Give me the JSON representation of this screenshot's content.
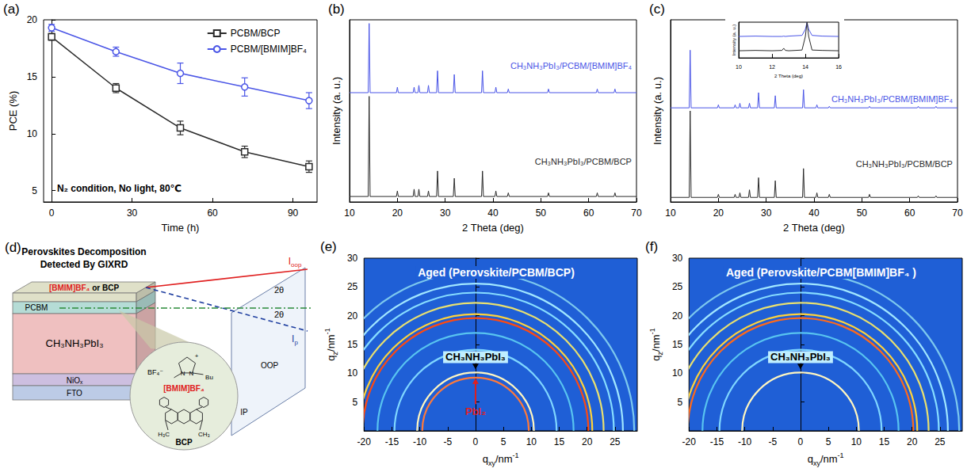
{
  "chart_data": [
    {
      "panel_label": "(a)",
      "type": "line",
      "xlabel": "Time (h)",
      "ylabel": "PCE (%)",
      "x": [
        0,
        24,
        48,
        72,
        96
      ],
      "xlim": [
        -3,
        99
      ],
      "xticks": [
        0,
        30,
        60,
        90
      ],
      "ylim": [
        4,
        20
      ],
      "yticks": [
        5,
        10,
        15,
        20
      ],
      "legend": "upper right",
      "annotations": [
        {
          "text": "N₂ condition, No light, 80℃",
          "x": 2,
          "y": 5.2
        }
      ],
      "series": [
        {
          "name": "PCBM/BCP",
          "color": "#2b2b2b",
          "marker": "square-open",
          "values": [
            18.5,
            14.0,
            10.5,
            8.4,
            7.1
          ],
          "errors": [
            0.3,
            0.4,
            0.6,
            0.5,
            0.5
          ]
        },
        {
          "name": "PCBM/[BMIM]BF₄",
          "color": "#4a55e6",
          "marker": "circle-open",
          "values": [
            19.3,
            17.2,
            15.3,
            14.1,
            12.9
          ],
          "errors": [
            0.3,
            0.4,
            0.9,
            0.8,
            0.7
          ]
        }
      ]
    },
    {
      "panel_label": "(b)",
      "type": "line",
      "xlabel": "2 Theta (deg)",
      "ylabel": "Intensity (a. u.)",
      "xlim": [
        10,
        70
      ],
      "xticks": [
        10,
        20,
        30,
        40,
        50,
        60,
        70
      ],
      "ylim": [
        0,
        100
      ],
      "tick_labels": "x",
      "x": [
        10,
        13.9,
        14.1,
        14.3,
        19.8,
        20.0,
        20.2,
        23.3,
        23.5,
        23.7,
        24.3,
        24.5,
        24.7,
        26.3,
        26.5,
        26.7,
        28.2,
        28.4,
        28.6,
        31.7,
        31.9,
        32.1,
        37.6,
        37.8,
        38.0,
        40.4,
        40.6,
        40.8,
        43.0,
        43.2,
        43.4,
        51.4,
        51.6,
        51.8,
        61.6,
        61.8,
        62.0,
        65.3,
        65.5,
        65.7,
        70
      ],
      "series": [
        {
          "name": "CH₃NH₃PbI₃/PCBM/[BMIM]BF₄",
          "color": "#4a55e6",
          "label_at": [
            69,
            75
          ],
          "values": [
            60,
            60,
            98,
            60,
            60,
            63,
            60,
            60,
            63,
            60,
            60,
            64,
            60,
            60,
            64,
            60,
            60,
            72,
            60,
            60,
            70,
            60,
            60,
            72,
            60,
            60,
            63,
            60,
            60,
            62,
            60,
            60,
            62,
            60,
            60,
            62,
            60,
            60,
            62,
            60,
            60
          ]
        },
        {
          "name": "CH₃NH₃PbI₃/PCBM/BCP",
          "color": "#2b2b2b",
          "label_at": [
            69,
            22
          ],
          "values": [
            3,
            3,
            58,
            3,
            3,
            6,
            3,
            3,
            7,
            3,
            3,
            7,
            3,
            3,
            6,
            3,
            3,
            17,
            3,
            3,
            13,
            3,
            3,
            17,
            3,
            3,
            6,
            3,
            3,
            5,
            3,
            3,
            5,
            3,
            3,
            5,
            3,
            3,
            5,
            3,
            3
          ]
        }
      ]
    },
    {
      "panel_label": "(c)",
      "type": "line",
      "xlabel": "2 Theta (deg)",
      "ylabel": "Intensity (a. u.)",
      "xlim": [
        10,
        70
      ],
      "xticks": [
        10,
        20,
        30,
        40,
        50,
        60,
        70
      ],
      "ylim": [
        0,
        120
      ],
      "tick_labels": "x",
      "x": [
        10,
        13.9,
        14.1,
        14.3,
        19.8,
        20.0,
        20.2,
        23.3,
        23.5,
        23.7,
        24.3,
        24.5,
        24.7,
        26.3,
        26.5,
        26.7,
        28.2,
        28.4,
        28.6,
        31.7,
        31.9,
        32.1,
        37.6,
        37.8,
        38.0,
        40.4,
        40.6,
        40.8,
        43.0,
        43.2,
        43.4,
        51.4,
        51.6,
        51.8,
        61.6,
        61.8,
        62.0,
        65.3,
        65.5,
        65.7,
        70
      ],
      "series": [
        {
          "name": "CH₃NH₃PbI₃/PCBM/[BMIM]BF₄",
          "color": "#4a55e6",
          "label_at": [
            69,
            68
          ],
          "values": [
            62,
            62,
            100,
            62,
            62,
            64,
            62,
            62,
            64,
            62,
            62,
            65,
            62,
            62,
            65,
            62,
            62,
            72,
            62,
            62,
            70,
            62,
            62,
            74,
            62,
            62,
            64,
            62,
            62,
            63,
            62,
            62,
            63,
            62,
            62,
            63,
            62,
            62,
            63,
            62,
            62
          ]
        },
        {
          "name": "CH₃NH₃PbI₃/PCBM/BCP",
          "color": "#2b2b2b",
          "label_at": [
            69,
            25
          ],
          "values": [
            3,
            3,
            60,
            3,
            3,
            5,
            3,
            3,
            5,
            3,
            3,
            6,
            3,
            3,
            8,
            3,
            3,
            16,
            3,
            3,
            14,
            3,
            3,
            22,
            3,
            3,
            6,
            3,
            3,
            5,
            3,
            3,
            5,
            3,
            3,
            4,
            3,
            3,
            4,
            3,
            3
          ]
        }
      ],
      "inset": {
        "type": "line",
        "xlabel": "2 Theta (deg)",
        "ylabel": "Intensity (a. u.)",
        "xlim": [
          10,
          16
        ],
        "xticks": [
          10,
          12,
          14,
          16
        ],
        "ylim": [
          0,
          100
        ],
        "tick_labels": "x",
        "x": [
          10,
          11,
          12,
          12.6,
          12.7,
          12.8,
          13,
          13.8,
          14.0,
          14.1,
          14.2,
          14.4,
          15,
          16
        ],
        "series": [
          {
            "color": "#4a55e6",
            "values": [
              60,
              61,
              60,
              60,
              61,
              60,
              61,
              63,
              80,
              100,
              80,
              63,
              61,
              60
            ]
          },
          {
            "color": "#2b2b2b",
            "values": [
              20,
              21,
              20,
              21,
              27,
              21,
              20,
              22,
              60,
              100,
              60,
              22,
              21,
              20
            ]
          }
        ]
      }
    },
    {
      "panel_label": "(e)",
      "type": "rings",
      "title": "Aged (Perovskite/PCBM/BCP)",
      "xlabel": {
        "base": "q",
        "sub": "xy",
        "unit": "/nm",
        "sup": "-1"
      },
      "ylabel": {
        "base": "q",
        "sub": "z",
        "unit": "/nm",
        "sup": "-1"
      },
      "xlim": [
        -20,
        29
      ],
      "xticks": [
        -20,
        -15,
        -10,
        -5,
        0,
        5,
        10,
        15,
        20,
        25
      ],
      "ylim": [
        0,
        30
      ],
      "yticks": [
        5,
        10,
        15,
        20,
        25,
        30
      ],
      "color": "#1f5fd6",
      "rings": [
        {
          "q": 9.4,
          "color": "#ff7a3a"
        },
        {
          "q": 10.3,
          "color": "#fff6c0"
        },
        {
          "q": 14.3,
          "color": "#7fd6ff"
        },
        {
          "q": 17.3,
          "color": "#58c4f0"
        },
        {
          "q": 19.9,
          "color": "#ff4a10"
        },
        {
          "q": 20.6,
          "color": "#ffd23a"
        },
        {
          "q": 22.6,
          "color": "#e8e070"
        },
        {
          "q": 24.4,
          "color": "#86dcff"
        },
        {
          "q": 26.0,
          "color": "#a0e6ff"
        },
        {
          "q": 28.0,
          "color": "#7cc8ee"
        }
      ],
      "annotations": [
        {
          "text": "CH₃NH₃PbI₃",
          "x": 0,
          "y": 12.8,
          "target": [
            0,
            10.7
          ],
          "color": "#000000"
        },
        {
          "text": "PbI₂",
          "x": 0,
          "y": 3.4,
          "target": [
            0,
            9.1
          ],
          "color": "#e02020"
        }
      ]
    },
    {
      "panel_label": "(f)",
      "type": "rings",
      "title": "Aged (Perovskite/PCBM[BMIM]BF₄ )",
      "xlabel": {
        "base": "q",
        "sub": "xy",
        "unit": "/nm",
        "sup": "-1"
      },
      "ylabel": {
        "base": "q",
        "sub": "z",
        "unit": "/nm",
        "sup": "-1"
      },
      "xlim": [
        -20,
        29
      ],
      "xticks": [
        -20,
        -15,
        -10,
        -5,
        0,
        5,
        10,
        15,
        20,
        25
      ],
      "ylim": [
        0,
        30
      ],
      "yticks": [
        5,
        10,
        15,
        20,
        25,
        30
      ],
      "color": "#1f5fd6",
      "rings": [
        {
          "q": 10.3,
          "color": "#fff6c0"
        },
        {
          "q": 14.3,
          "color": "#7fd6ff"
        },
        {
          "q": 17.3,
          "color": "#58c4f0"
        },
        {
          "q": 19.9,
          "color": "#ff6a1a"
        },
        {
          "q": 20.6,
          "color": "#ffd23a"
        },
        {
          "q": 22.6,
          "color": "#e8e070"
        },
        {
          "q": 24.4,
          "color": "#86dcff"
        },
        {
          "q": 26.0,
          "color": "#a0e6ff"
        },
        {
          "q": 28.0,
          "color": "#7cc8ee"
        }
      ],
      "annotations": [
        {
          "text": "CH₃NH₃PbI₃",
          "x": 0,
          "y": 12.8,
          "target": [
            0,
            10.7
          ],
          "color": "#000000"
        }
      ]
    }
  ],
  "diagram": {
    "panel_label": "(d)",
    "title": "Perovskites Decomposition Detected By GIXRD",
    "layers": [
      {
        "label": [
          {
            "text": "[BMIM]BF₄",
            "color": "#e02020"
          },
          {
            "text": " or BCP",
            "color": "#000000"
          }
        ],
        "color": "#dfe0c8"
      },
      {
        "label": [
          {
            "text": "PCBM",
            "color": "#000000"
          }
        ],
        "color": "#b5dcd6"
      },
      {
        "label": [
          {
            "text": "CH₃NH₃PbI₃",
            "color": "#000000"
          }
        ],
        "color": "#efc0c0"
      },
      {
        "label": [
          {
            "text": "NiOₓ",
            "color": "#000000"
          }
        ],
        "color": "#cdbfe0"
      },
      {
        "label": [
          {
            "text": "FTO",
            "color": "#000000"
          }
        ],
        "color": "#bccbe6"
      }
    ],
    "beams": [
      {
        "label": {
          "base": "I",
          "sub": "oop"
        },
        "color": "#e02020",
        "line_style": "solid"
      },
      {
        "label": {
          "base": "I",
          "sub": "p"
        },
        "color": "#1f3fa0",
        "line_style": "dashed"
      },
      {
        "color": "#2a8a3a",
        "line_style": "dashdot"
      }
    ],
    "angle_labels": [
      "2θ",
      "2θ"
    ],
    "plane_labels": [
      "OOP",
      "IP"
    ],
    "molecules": [
      {
        "name": "[BMIM]BF₄",
        "color": "#e02020",
        "labels": [
          "BF₄⁻",
          "N",
          "N",
          "+",
          "Bu"
        ]
      },
      {
        "name": "BCP",
        "color": "#000000",
        "labels": [
          "H₃C",
          "CH₃"
        ]
      }
    ]
  }
}
